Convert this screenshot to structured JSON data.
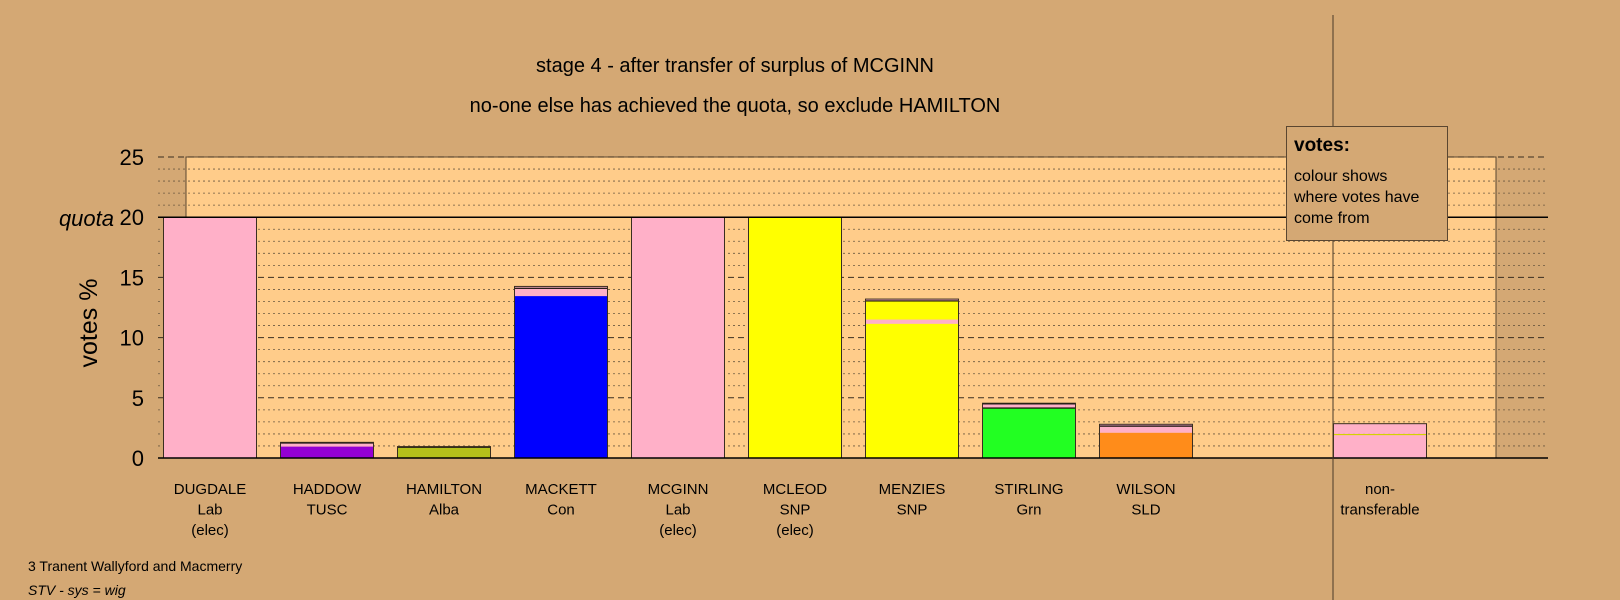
{
  "chart_data": {
    "type": "bar",
    "stacked": true,
    "title": "stage 4 - after transfer of surplus of MCGINN",
    "subtitle": "no-one else has achieved the quota, so exclude HAMILTON",
    "ylabel": "votes %",
    "ylim": [
      0,
      25
    ],
    "yticks": [
      0,
      5,
      10,
      15,
      20,
      25
    ],
    "quota": 20,
    "quota_label": "quota",
    "grid": true,
    "categories": [
      {
        "lines": [
          "DUGDALE",
          "Lab",
          "(elec)"
        ]
      },
      {
        "lines": [
          "HADDOW",
          "TUSC"
        ]
      },
      {
        "lines": [
          "HAMILTON",
          "Alba"
        ]
      },
      {
        "lines": [
          "MACKETT",
          "Con"
        ]
      },
      {
        "lines": [
          "MCGINN",
          "Lab",
          "(elec)"
        ]
      },
      {
        "lines": [
          "MCLEOD",
          "SNP",
          "(elec)"
        ]
      },
      {
        "lines": [
          "MENZIES",
          "SNP"
        ]
      },
      {
        "lines": [
          "STIRLING",
          "Grn"
        ]
      },
      {
        "lines": [
          "WILSON",
          "SLD"
        ]
      },
      {
        "lines": [
          "non-",
          "transferable"
        ],
        "separate": true
      }
    ],
    "stacks": [
      [
        {
          "color": "#ffb0c8",
          "value": 20.0
        }
      ],
      [
        {
          "color": "#9400d3",
          "value": 0.95
        },
        {
          "color": "#ffb0c8",
          "value": 0.25
        },
        {
          "color": "#000000",
          "value": 0.1
        }
      ],
      [
        {
          "color": "#b5c11a",
          "value": 0.85
        },
        {
          "color": "#000000",
          "value": 0.1
        }
      ],
      [
        {
          "color": "#0000ff",
          "value": 13.45
        },
        {
          "color": "#ffb0c8",
          "value": 0.6
        },
        {
          "color": "#000000",
          "value": 0.1
        },
        {
          "color": "#ffb0c8",
          "value": 0.1
        }
      ],
      [
        {
          "color": "#ffb0c8",
          "value": 20.0
        }
      ],
      [
        {
          "color": "#ffff00",
          "value": 20.0
        }
      ],
      [
        {
          "color": "#ffff00",
          "value": 11.15
        },
        {
          "color": "#ffb0c8",
          "value": 0.35
        },
        {
          "color": "#ffff00",
          "value": 1.5
        },
        {
          "color": "#000000",
          "value": 0.1
        },
        {
          "color": "#ffb0c8",
          "value": 0.1
        }
      ],
      [
        {
          "color": "#22ff22",
          "value": 4.1
        },
        {
          "color": "#000000",
          "value": 0.1
        },
        {
          "color": "#ffb0c8",
          "value": 0.25
        },
        {
          "color": "#000000",
          "value": 0.1
        }
      ],
      [
        {
          "color": "#ff8c1a",
          "value": 2.1
        },
        {
          "color": "#ffb0c8",
          "value": 0.5
        },
        {
          "color": "#000000",
          "value": 0.1
        },
        {
          "color": "#ffb0c8",
          "value": 0.1
        }
      ],
      [
        {
          "color": "#ffb0c8",
          "value": 1.9
        },
        {
          "color": "#d4d200",
          "value": 0.1
        },
        {
          "color": "#ffb0c8",
          "value": 0.85
        }
      ]
    ],
    "colors": {
      "background": "#d4a874",
      "plot_area": "#ffcc8a",
      "plot_side": "#d4a874",
      "grid": "#6b5840"
    }
  },
  "note": {
    "title": "votes:",
    "text": "colour shows where votes have come from"
  },
  "footer": {
    "area": "3 Tranent Wallyford and Macmerry",
    "system": "STV - sys = wig"
  }
}
